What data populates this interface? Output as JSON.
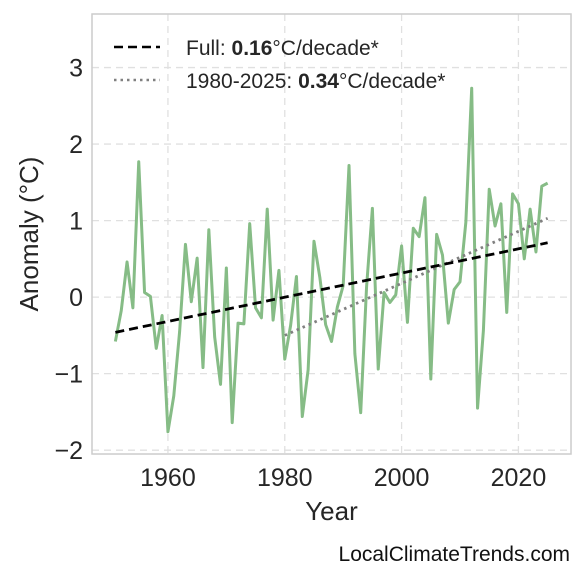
{
  "chart_data": {
    "type": "line",
    "xlabel": "Year",
    "ylabel": "Anomaly (°C)",
    "xlim": [
      1947,
      2029
    ],
    "ylim": [
      -2.05,
      3.7
    ],
    "x_ticks": [
      1960,
      1980,
      2000,
      2020
    ],
    "y_ticks": [
      -2,
      -1,
      0,
      1,
      2,
      3
    ],
    "y_tick_labels": [
      "−2",
      "−1",
      "0",
      "1",
      "2",
      "3"
    ],
    "grid": true,
    "legend_position": "top-left",
    "colors": {
      "series": "#86bc86",
      "full_trend": "#000000",
      "recent_trend": "#808080"
    },
    "series": [
      {
        "x": [
          1951,
          1952,
          1953,
          1954,
          1955,
          1956,
          1957,
          1958,
          1959,
          1960,
          1961,
          1962,
          1963,
          1964,
          1965,
          1966,
          1967,
          1968,
          1969,
          1970,
          1971,
          1972,
          1973,
          1974,
          1975,
          1976,
          1977,
          1978,
          1979,
          1980,
          1981,
          1982,
          1983,
          1984,
          1985,
          1986,
          1987,
          1988,
          1989,
          1990,
          1991,
          1992,
          1993,
          1994,
          1995,
          1996,
          1997,
          1998,
          1999,
          2000,
          2001,
          2002,
          2003,
          2004,
          2005,
          2006,
          2007,
          2008,
          2009,
          2010,
          2011,
          2012,
          2013,
          2014,
          2015,
          2016,
          2017,
          2018,
          2019,
          2020,
          2021,
          2022,
          2023,
          2024,
          2025
        ],
        "y": [
          -0.58,
          -0.18,
          0.46,
          -0.14,
          1.77,
          0.06,
          0.01,
          -0.67,
          -0.24,
          -1.76,
          -1.29,
          -0.45,
          0.69,
          -0.06,
          0.51,
          -0.92,
          0.88,
          -0.52,
          -1.14,
          0.38,
          -1.64,
          -0.34,
          -0.35,
          0.96,
          -0.14,
          -0.27,
          1.15,
          -0.3,
          0.35,
          -0.81,
          -0.37,
          0.27,
          -1.56,
          -0.95,
          0.73,
          0.26,
          -0.36,
          -0.58,
          -0.13,
          0.15,
          1.72,
          -0.74,
          -1.51,
          0.13,
          1.16,
          -0.94,
          0.06,
          -0.07,
          0.03,
          0.67,
          -0.33,
          0.9,
          0.79,
          1.3,
          -1.07,
          0.82,
          0.55,
          -0.34,
          0.1,
          0.2,
          0.98,
          2.73,
          -1.45,
          -0.44,
          1.41,
          0.93,
          1.22,
          -0.2,
          1.35,
          1.22,
          0.5,
          1.15,
          0.59,
          1.45,
          1.49
        ]
      }
    ],
    "trends": [
      {
        "name": "Full",
        "rate": "0.16",
        "x": [
          1951,
          2025
        ],
        "y": [
          -0.46,
          0.71
        ]
      },
      {
        "name": "1980-2025",
        "rate": "0.34",
        "x": [
          1980,
          2025
        ],
        "y": [
          -0.5,
          1.03
        ]
      }
    ]
  },
  "legend": {
    "full": {
      "label": "Full: ",
      "value": "0.16",
      "unit": "°C/decade*"
    },
    "recent": {
      "label": "1980-2025: ",
      "value": "0.34",
      "unit": "°C/decade*"
    }
  },
  "credit": "LocalClimateTrends.com"
}
